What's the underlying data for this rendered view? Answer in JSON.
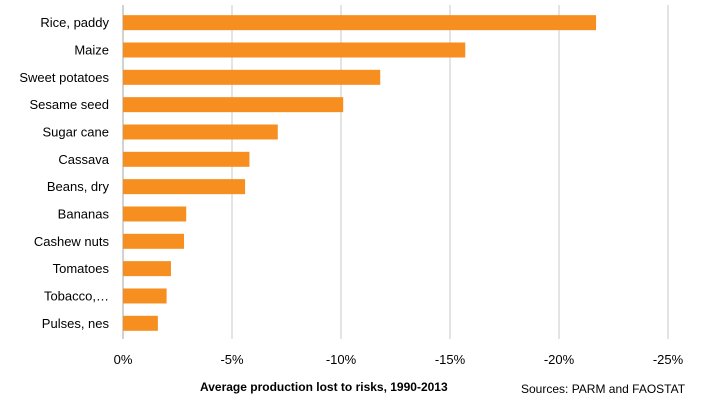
{
  "chart_data": {
    "type": "bar",
    "orientation": "horizontal",
    "categories": [
      "Rice, paddy",
      "Maize",
      "Sweet potatoes",
      "Sesame seed",
      "Sugar cane",
      "Cassava",
      "Beans, dry",
      "Bananas",
      "Cashew nuts",
      "Tomatoes",
      "Tobacco,…",
      "Pulses, nes"
    ],
    "values": [
      -21.7,
      -15.7,
      -11.8,
      -10.1,
      -7.1,
      -5.8,
      -5.6,
      -2.9,
      -2.8,
      -2.2,
      -2.0,
      -1.6
    ],
    "xlabel": "Average production lost to risks, 1990-2013",
    "source": "Sources: PARM and FAOSTAT",
    "xlim": [
      0,
      -25
    ],
    "xticks": [
      0,
      -5,
      -10,
      -15,
      -20,
      -25
    ],
    "xtick_labels": [
      "0%",
      "-5%",
      "-10%",
      "-15%",
      "-20%",
      "-25%"
    ],
    "grid": "vertical",
    "legend": "none",
    "colors": {
      "bar": "#f68f1f",
      "grid": "#c8c8c8",
      "axis": "#a6a6a6"
    }
  }
}
